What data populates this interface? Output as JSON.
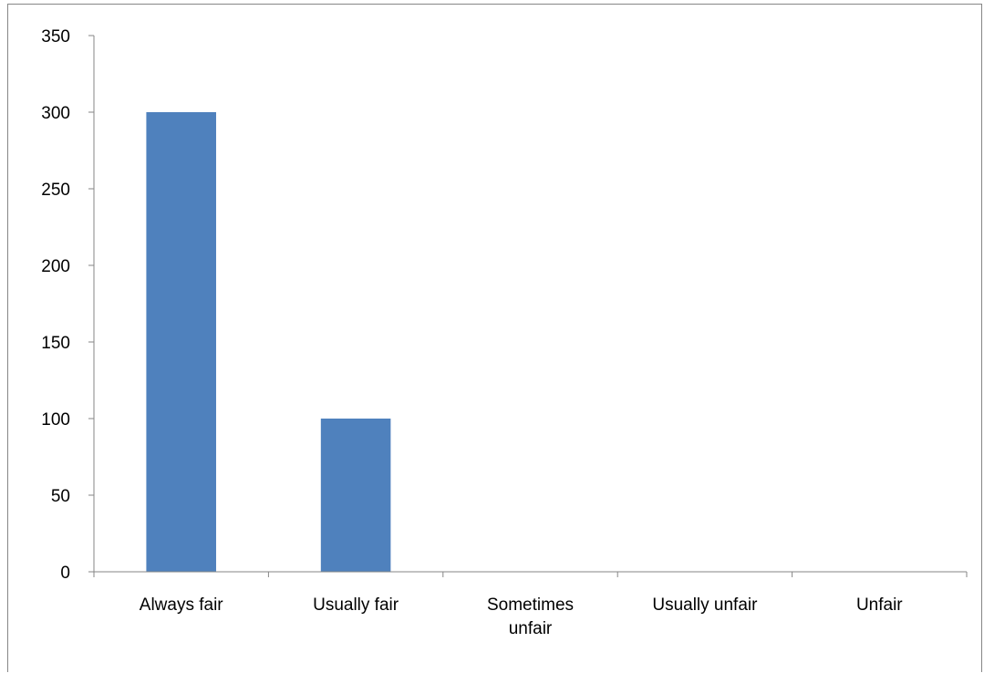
{
  "chart_data": {
    "type": "bar",
    "title": "",
    "xlabel": "",
    "ylabel": "",
    "categories": [
      "Always fair",
      "Usually fair",
      "Sometimes unfair",
      "Usually unfair",
      "Unfair"
    ],
    "category_label_lines": [
      [
        "Always fair"
      ],
      [
        "Usually fair"
      ],
      [
        "Sometimes",
        "unfair"
      ],
      [
        "Usually unfair"
      ],
      [
        "Unfair"
      ]
    ],
    "series": [
      {
        "values": [
          300,
          100,
          0,
          0,
          0
        ]
      }
    ],
    "ylim": [
      0,
      350
    ],
    "yticks": [
      0,
      50,
      100,
      150,
      200,
      250,
      300,
      350
    ],
    "grid": false,
    "legend": "none",
    "bar_color": "#4f81bd",
    "axis_color": "#868686"
  }
}
